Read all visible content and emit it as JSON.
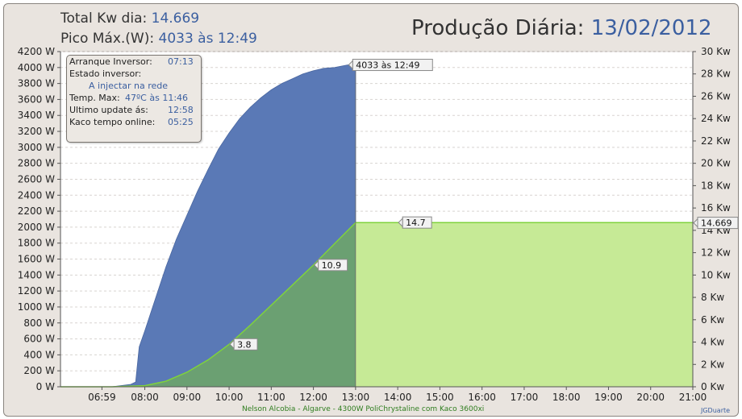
{
  "header": {
    "total_label": "Total Kw dia:",
    "total_value": "14.669",
    "peak_label": "Pico Máx.(W):",
    "peak_value": "4033 às 12:49",
    "title_label": "Produção Diária:",
    "title_date": "13/02/2012"
  },
  "info_box": {
    "start_label": "Arranque Inversor:",
    "start_value": "07:13",
    "state_label": "Estado      inversor:",
    "state_value": "A injectar na rede",
    "temp_label": "Temp. Max:",
    "temp_value": "47ºC às 11:46",
    "update_label": "Ultimo update ás:",
    "update_value": "12:58",
    "online_label": "Kaco tempo online:",
    "online_value": "05:25"
  },
  "footer": {
    "caption": "Nelson Alcobia  -  Algarve  -  4300W PoliChrystaline com Kaco 3600xi",
    "credit": "JGDuarte"
  },
  "colors": {
    "power_fill": "#5a79b6",
    "energy_fill_active": "#6da46a",
    "energy_fill_flat": "#c6ea96",
    "energy_line": "#7fd23c",
    "background": "#e9e4df"
  },
  "chart_data": {
    "type": "area",
    "x_ticks": [
      "06:59",
      "08:00",
      "09:00",
      "10:00",
      "11:00",
      "12:00",
      "13:00",
      "14:00",
      "15:00",
      "16:00",
      "17:00",
      "18:00",
      "19:00",
      "20:00",
      "21:00"
    ],
    "x_range": [
      "06:00",
      "21:00"
    ],
    "y_left_ticks": [
      "0 W",
      "200 W",
      "400 W",
      "600 W",
      "800 W",
      "1000 W",
      "1200 W",
      "1400 W",
      "1600 W",
      "1800 W",
      "2000 W",
      "2200 W",
      "2400 W",
      "2600 W",
      "2800 W",
      "3000 W",
      "3200 W",
      "3400 W",
      "3600 W",
      "3800 W",
      "4000 W",
      "4200 W"
    ],
    "y_left_range": [
      0,
      4200
    ],
    "y_right_ticks": [
      "0 Kw",
      "2 Kw",
      "4 Kw",
      "6 Kw",
      "8 Kw",
      "10 Kw",
      "12 Kw",
      "14 Kw",
      "16 Kw",
      "18 Kw",
      "20 Kw",
      "22 Kw",
      "24 Kw",
      "26 Kw",
      "28 Kw",
      "30 Kw"
    ],
    "y_right_range": [
      0,
      30
    ],
    "grid": "horizontal dashed",
    "series": [
      {
        "axis": "left",
        "x": [
          "06:00",
          "07:13",
          "07:40",
          "07:47",
          "07:52",
          "08:00",
          "08:15",
          "08:30",
          "08:45",
          "09:00",
          "09:15",
          "09:30",
          "09:45",
          "10:00",
          "10:15",
          "10:30",
          "10:45",
          "11:00",
          "11:15",
          "11:30",
          "11:45",
          "12:00",
          "12:15",
          "12:30",
          "12:49",
          "13:00"
        ],
        "values": [
          0,
          0,
          30,
          60,
          500,
          700,
          1100,
          1500,
          1850,
          2150,
          2450,
          2720,
          2980,
          3180,
          3360,
          3500,
          3620,
          3720,
          3800,
          3860,
          3920,
          3960,
          3990,
          4000,
          4033,
          4010
        ]
      },
      {
        "axis": "right",
        "x": [
          "06:00",
          "07:13",
          "08:00",
          "08:30",
          "09:00",
          "09:30",
          "10:00",
          "10:30",
          "11:00",
          "11:30",
          "12:00",
          "12:30",
          "13:00",
          "21:00"
        ],
        "values": [
          0,
          0,
          0.1,
          0.5,
          1.3,
          2.4,
          3.8,
          5.5,
          7.3,
          9.1,
          10.9,
          12.8,
          14.7,
          14.7
        ]
      }
    ],
    "annotations": [
      {
        "label": "4033 às 12:49",
        "x": "12:49",
        "y": 4033,
        "axis": "left"
      },
      {
        "label": "3.8",
        "x": "10:00",
        "y": 3.8,
        "axis": "right"
      },
      {
        "label": "10.9",
        "x": "12:00",
        "y": 10.9,
        "axis": "right"
      },
      {
        "label": "14.7",
        "x": "14:00",
        "y": 14.7,
        "axis": "right"
      },
      {
        "label": "14.669",
        "x": "21:00",
        "y": 14.669,
        "axis": "right"
      }
    ]
  }
}
